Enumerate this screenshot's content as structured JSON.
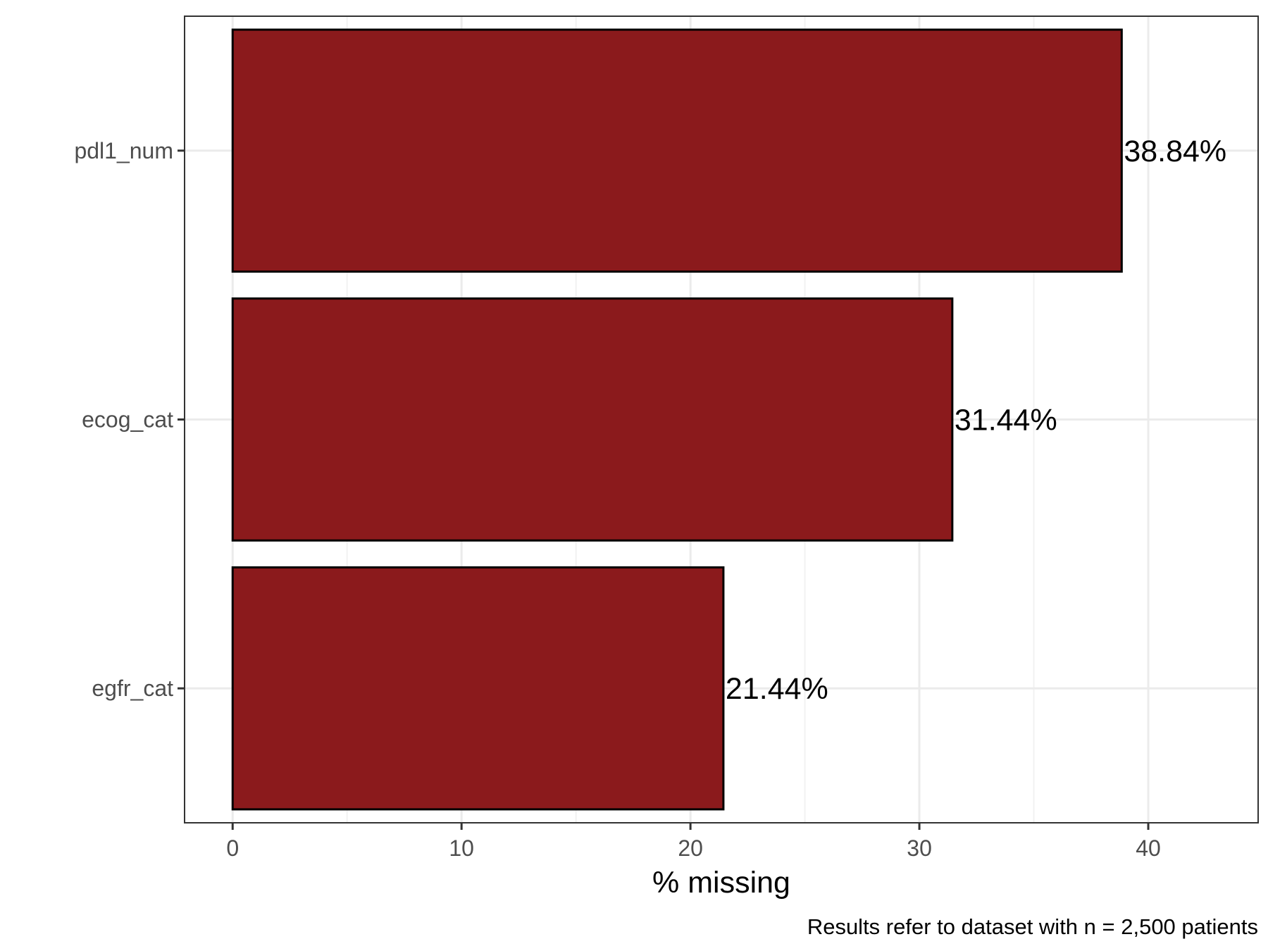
{
  "chart_data": {
    "type": "bar",
    "orientation": "horizontal",
    "categories": [
      "pdl1_num",
      "ecog_cat",
      "egfr_cat"
    ],
    "values": [
      38.84,
      31.44,
      21.44
    ],
    "data_labels": [
      "38.84%",
      "31.44%",
      "21.44%"
    ],
    "xlabel": "% missing",
    "ylabel": "",
    "xlim": [
      -2.1,
      44.8
    ],
    "xticks": [
      0,
      10,
      20,
      30,
      40
    ],
    "xtick_labels": [
      "0",
      "10",
      "20",
      "30",
      "40"
    ],
    "caption": "Results refer to dataset with n = 2,500 patients",
    "grid": true,
    "legend": "none",
    "colors": {
      "bar_fill": "#8b1a1c",
      "bar_stroke": "#000000",
      "grid_major": "#ebebeb",
      "grid_minor": "#f2f2f2",
      "panel_border": "#333333"
    }
  }
}
